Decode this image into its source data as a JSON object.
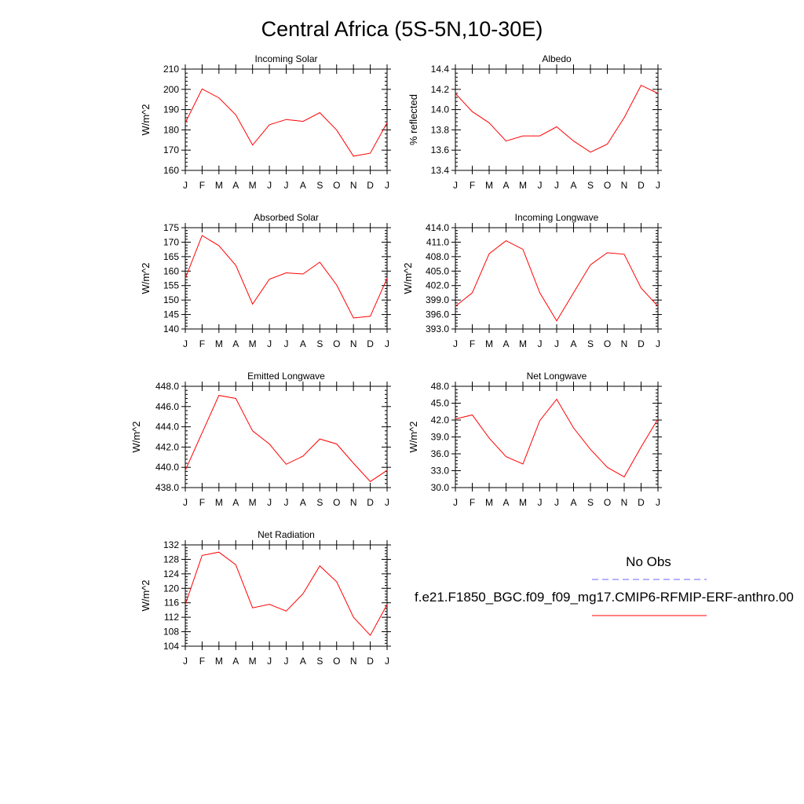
{
  "title": "Central Africa (5S-5N,10-30E)",
  "colors": {
    "model": "#ff0000",
    "obs": "#6666ff",
    "axis": "#000000"
  },
  "months": [
    "J",
    "F",
    "M",
    "A",
    "M",
    "J",
    "J",
    "A",
    "S",
    "O",
    "N",
    "D",
    "J"
  ],
  "legend": {
    "obs_label": "No Obs",
    "model_label": "f.e21.F1850_BGC.f09_f09_mg17.CMIP6-RFMIP-ERF-anthro.00"
  },
  "chart_data": [
    {
      "type": "line",
      "title": "Incoming Solar",
      "ylabel": "W/m^2",
      "ylim": [
        160,
        210
      ],
      "yticks": [
        "160",
        "170",
        "180",
        "190",
        "200",
        "210"
      ],
      "categories": [
        "J",
        "F",
        "M",
        "A",
        "M",
        "J",
        "J",
        "A",
        "S",
        "O",
        "N",
        "D",
        "J"
      ],
      "series": [
        {
          "values": [
            183.5,
            200.2,
            195.8,
            187.4,
            172.5,
            182.5,
            185.1,
            184.2,
            188.5,
            179.9,
            167.0,
            168.5,
            183.5
          ]
        }
      ]
    },
    {
      "type": "line",
      "title": "Albedo",
      "ylabel": "% reflected",
      "ylim": [
        13.4,
        14.4
      ],
      "yticks": [
        "13.4",
        "13.6",
        "13.8",
        "14.0",
        "14.2",
        "14.4"
      ],
      "categories": [
        "J",
        "F",
        "M",
        "A",
        "M",
        "J",
        "J",
        "A",
        "S",
        "O",
        "N",
        "D",
        "J"
      ],
      "series": [
        {
          "values": [
            14.16,
            13.98,
            13.87,
            13.69,
            13.74,
            13.74,
            13.83,
            13.69,
            13.58,
            13.66,
            13.92,
            14.24,
            14.16
          ]
        }
      ]
    },
    {
      "type": "line",
      "title": "Absorbed Solar",
      "ylabel": "W/m^2",
      "ylim": [
        140,
        175
      ],
      "yticks": [
        "140",
        "145",
        "150",
        "155",
        "160",
        "165",
        "170",
        "175"
      ],
      "categories": [
        "J",
        "F",
        "M",
        "A",
        "M",
        "J",
        "J",
        "A",
        "S",
        "O",
        "N",
        "D",
        "J"
      ],
      "series": [
        {
          "values": [
            157.5,
            172.3,
            168.8,
            162.0,
            148.6,
            157.2,
            159.4,
            159.0,
            163.1,
            155.2,
            143.8,
            144.4,
            157.5
          ]
        }
      ]
    },
    {
      "type": "line",
      "title": "Incoming Longwave",
      "ylabel": "W/m^2",
      "ylim": [
        393,
        414
      ],
      "yticks": [
        "393.0",
        "396.0",
        "399.0",
        "402.0",
        "405.0",
        "408.0",
        "411.0",
        "414.0"
      ],
      "categories": [
        "J",
        "F",
        "M",
        "A",
        "M",
        "J",
        "J",
        "A",
        "S",
        "O",
        "N",
        "D",
        "J"
      ],
      "series": [
        {
          "values": [
            397.7,
            400.5,
            408.6,
            411.3,
            409.5,
            400.5,
            394.7,
            400.5,
            406.3,
            408.8,
            408.5,
            401.5,
            397.7
          ]
        }
      ]
    },
    {
      "type": "line",
      "title": "Emitted Longwave",
      "ylabel": "W/m^2",
      "ylim": [
        438,
        448
      ],
      "yticks": [
        "438.0",
        "440.0",
        "442.0",
        "444.0",
        "446.0",
        "448.0"
      ],
      "categories": [
        "J",
        "F",
        "M",
        "A",
        "M",
        "J",
        "J",
        "A",
        "S",
        "O",
        "N",
        "D",
        "J"
      ],
      "series": [
        {
          "values": [
            439.7,
            443.4,
            447.1,
            446.8,
            443.6,
            442.3,
            440.3,
            441.1,
            442.8,
            442.3,
            440.4,
            438.6,
            439.7
          ]
        }
      ]
    },
    {
      "type": "line",
      "title": "Net Longwave",
      "ylabel": "W/m^2",
      "ylim": [
        30,
        48
      ],
      "yticks": [
        "30.0",
        "33.0",
        "36.0",
        "39.0",
        "42.0",
        "45.0",
        "48.0"
      ],
      "categories": [
        "J",
        "F",
        "M",
        "A",
        "M",
        "J",
        "J",
        "A",
        "S",
        "O",
        "N",
        "D",
        "J"
      ],
      "series": [
        {
          "values": [
            42.2,
            42.9,
            38.8,
            35.5,
            34.2,
            41.9,
            45.7,
            40.6,
            36.8,
            33.6,
            31.9,
            37.2,
            42.2
          ]
        }
      ]
    },
    {
      "type": "line",
      "title": "Net Radiation",
      "ylabel": "W/m^2",
      "ylim": [
        104,
        132
      ],
      "yticks": [
        "104",
        "108",
        "112",
        "116",
        "120",
        "124",
        "128",
        "132"
      ],
      "categories": [
        "J",
        "F",
        "M",
        "A",
        "M",
        "J",
        "J",
        "A",
        "S",
        "O",
        "N",
        "D",
        "J"
      ],
      "series": [
        {
          "values": [
            115.5,
            129.1,
            130.0,
            126.5,
            114.6,
            115.6,
            113.7,
            118.5,
            126.2,
            121.8,
            112.0,
            107.0,
            115.5
          ]
        }
      ]
    }
  ]
}
